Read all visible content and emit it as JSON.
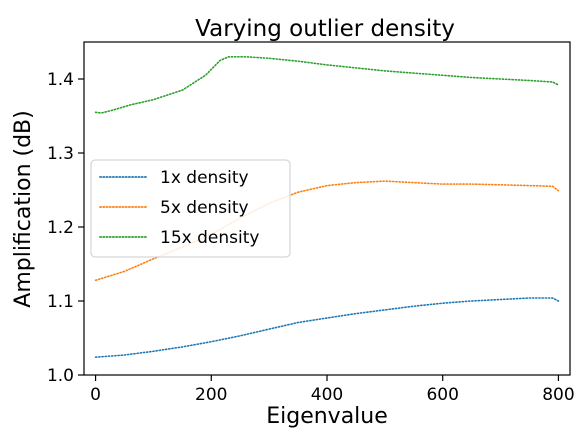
{
  "chart_data": {
    "type": "line",
    "title": "Varying outlier density",
    "xlabel": "Eigenvalue",
    "ylabel": "Amplification (dB)",
    "xlim": [
      -20,
      820
    ],
    "ylim": [
      1.0,
      1.45
    ],
    "xticks": [
      0,
      200,
      400,
      600,
      800
    ],
    "yticks": [
      1.0,
      1.1,
      1.2,
      1.3,
      1.4
    ],
    "xtick_labels": [
      "0",
      "200",
      "400",
      "600",
      "800"
    ],
    "ytick_labels": [
      "1.0",
      "1.1",
      "1.2",
      "1.3",
      "1.4"
    ],
    "grid": false,
    "legend_position": "center-left",
    "line_style": "dotted",
    "series": [
      {
        "name": "1x density",
        "color": "#1f77b4",
        "x": [
          0,
          50,
          100,
          150,
          200,
          250,
          300,
          350,
          400,
          450,
          500,
          550,
          600,
          650,
          700,
          750,
          790,
          800
        ],
        "y": [
          1.024,
          1.027,
          1.032,
          1.038,
          1.045,
          1.053,
          1.062,
          1.071,
          1.077,
          1.083,
          1.088,
          1.093,
          1.097,
          1.1,
          1.102,
          1.104,
          1.104,
          1.1
        ]
      },
      {
        "name": "5x density",
        "color": "#ff7f0e",
        "x": [
          0,
          50,
          100,
          150,
          200,
          250,
          300,
          350,
          400,
          450,
          500,
          550,
          600,
          650,
          700,
          750,
          790,
          800
        ],
        "y": [
          1.128,
          1.14,
          1.157,
          1.173,
          1.19,
          1.212,
          1.232,
          1.247,
          1.256,
          1.26,
          1.262,
          1.26,
          1.258,
          1.258,
          1.257,
          1.256,
          1.255,
          1.249
        ]
      },
      {
        "name": "15x density",
        "color": "#2ca02c",
        "x": [
          0,
          10,
          30,
          60,
          100,
          150,
          190,
          215,
          230,
          260,
          300,
          350,
          400,
          450,
          500,
          550,
          600,
          650,
          700,
          750,
          790,
          800
        ],
        "y": [
          1.355,
          1.354,
          1.358,
          1.365,
          1.372,
          1.385,
          1.405,
          1.425,
          1.43,
          1.43,
          1.428,
          1.424,
          1.419,
          1.415,
          1.411,
          1.408,
          1.405,
          1.402,
          1.4,
          1.398,
          1.396,
          1.392
        ]
      }
    ]
  }
}
